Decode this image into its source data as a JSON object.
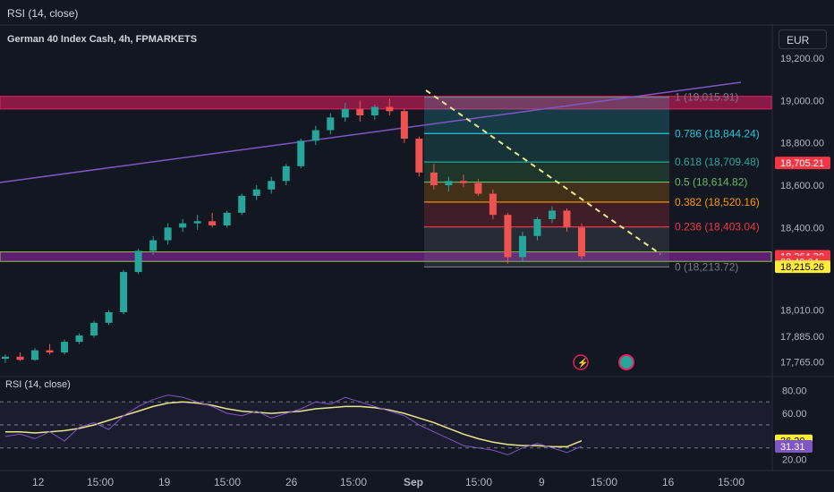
{
  "header": {
    "top_indicator": "RSI (14, close)",
    "symbol": "German 40 Index Cash, 4h, FPMARKETS",
    "currency": "EUR"
  },
  "rsi_pane": {
    "label": "RSI (14, close)"
  },
  "colors": {
    "background": "#131722",
    "up": "#26a69a",
    "down": "#ef5350",
    "resistance_zone": "#e91e63",
    "support_zone": "#9c27b0",
    "trendline": "#7e57c2",
    "fib_diagonal": "#e8e88a",
    "rsi_line": "#7e57c2",
    "rsi_ma": "#e8e88a"
  },
  "chart_data": {
    "type": "candlestick",
    "title": "German 40 Index Cash, 4h, FPMARKETS",
    "price_axis": {
      "ticks": [
        "19,200.00",
        "19,000.00",
        "18,800.00",
        "18,600.00",
        "18,400.00",
        "18,010.00",
        "17,885.00",
        "17,765.00"
      ],
      "ylim": [
        17700,
        19230
      ]
    },
    "time_axis": {
      "ticks": [
        "12",
        "15:00",
        "19",
        "15:00",
        "26",
        "15:00",
        "Sep",
        "15:00",
        "9",
        "15:00",
        "16",
        "15:00"
      ]
    },
    "fibonacci_levels": [
      {
        "ratio": "1",
        "price": 19015.91,
        "label": "1 (19,015.91)",
        "color": "#787b86"
      },
      {
        "ratio": "0.786",
        "price": 18844.24,
        "label": "0.786 (18,844.24)",
        "color": "#26c6da"
      },
      {
        "ratio": "0.618",
        "price": 18709.48,
        "label": "0.618 (18,709.48)",
        "color": "#26a69a"
      },
      {
        "ratio": "0.5",
        "price": 18614.82,
        "label": "0.5 (18,614.82)",
        "color": "#66bb6a"
      },
      {
        "ratio": "0.382",
        "price": 18520.16,
        "label": "0.382 (18,520.16)",
        "color": "#ff9800"
      },
      {
        "ratio": "0.236",
        "price": 18403.04,
        "label": "0.236 (18,403.04)",
        "color": "#f23645"
      },
      {
        "ratio": "0",
        "price": 18213.72,
        "label": "0 (18,213.72)",
        "color": "#787b86"
      }
    ],
    "price_tags": [
      {
        "label": "18,705.21",
        "color": "#f23645",
        "text_color": "#ffffff"
      },
      {
        "label": "18,264.20",
        "color": "#f23645",
        "text_color": "#ffffff"
      },
      {
        "label": "03:49:04",
        "color": "#f23645",
        "text_color": "#ffffff"
      },
      {
        "label": "18,215.26",
        "color": "#ffeb3b",
        "text_color": "#000000"
      }
    ],
    "zones": [
      {
        "name": "resistance",
        "from": 18960,
        "to": 19020,
        "color": "#e91e63"
      },
      {
        "name": "support",
        "from": 18240,
        "to": 18285,
        "color": "#9c27b0"
      }
    ],
    "candles_approx_ohlc_sample": [
      [
        17780,
        17800,
        17760,
        17790
      ],
      [
        17790,
        17810,
        17770,
        17775
      ],
      [
        17775,
        17830,
        17770,
        17820
      ],
      [
        17820,
        17850,
        17800,
        17810
      ],
      [
        17810,
        17870,
        17800,
        17860
      ],
      [
        17860,
        17900,
        17850,
        17890
      ],
      [
        17890,
        17960,
        17880,
        17950
      ],
      [
        17950,
        18010,
        17940,
        18000
      ],
      [
        18000,
        18200,
        17990,
        18190
      ],
      [
        18190,
        18300,
        18180,
        18290
      ],
      [
        18290,
        18360,
        18270,
        18340
      ],
      [
        18340,
        18420,
        18320,
        18400
      ],
      [
        18400,
        18440,
        18380,
        18420
      ],
      [
        18420,
        18460,
        18390,
        18430
      ],
      [
        18430,
        18470,
        18400,
        18410
      ],
      [
        18410,
        18480,
        18400,
        18470
      ],
      [
        18470,
        18560,
        18460,
        18550
      ],
      [
        18550,
        18600,
        18530,
        18580
      ],
      [
        18580,
        18640,
        18560,
        18620
      ],
      [
        18620,
        18700,
        18600,
        18690
      ],
      [
        18690,
        18820,
        18680,
        18810
      ],
      [
        18810,
        18880,
        18790,
        18860
      ],
      [
        18860,
        18940,
        18840,
        18920
      ],
      [
        18920,
        18990,
        18900,
        18960
      ],
      [
        18960,
        19000,
        18900,
        18930
      ],
      [
        18930,
        18980,
        18910,
        18970
      ],
      [
        18970,
        19010,
        18930,
        18950
      ],
      [
        18950,
        18960,
        18800,
        18820
      ],
      [
        18820,
        18830,
        18640,
        18660
      ],
      [
        18660,
        18700,
        18580,
        18600
      ],
      [
        18600,
        18640,
        18570,
        18620
      ],
      [
        18620,
        18650,
        18590,
        18610
      ],
      [
        18610,
        18630,
        18550,
        18560
      ],
      [
        18560,
        18580,
        18440,
        18460
      ],
      [
        18460,
        18470,
        18230,
        18260
      ],
      [
        18260,
        18380,
        18240,
        18360
      ],
      [
        18360,
        18450,
        18340,
        18440
      ],
      [
        18440,
        18500,
        18420,
        18480
      ],
      [
        18480,
        18490,
        18380,
        18400
      ],
      [
        18400,
        18420,
        18250,
        18264.2
      ]
    ],
    "rsi": {
      "levels": [
        70,
        50,
        30
      ],
      "ticks": [
        "80.00",
        "60.00",
        "20.00"
      ],
      "ylim": [
        15,
        85
      ],
      "current": {
        "rsi": "31.31",
        "ma": "36.20"
      }
    }
  }
}
